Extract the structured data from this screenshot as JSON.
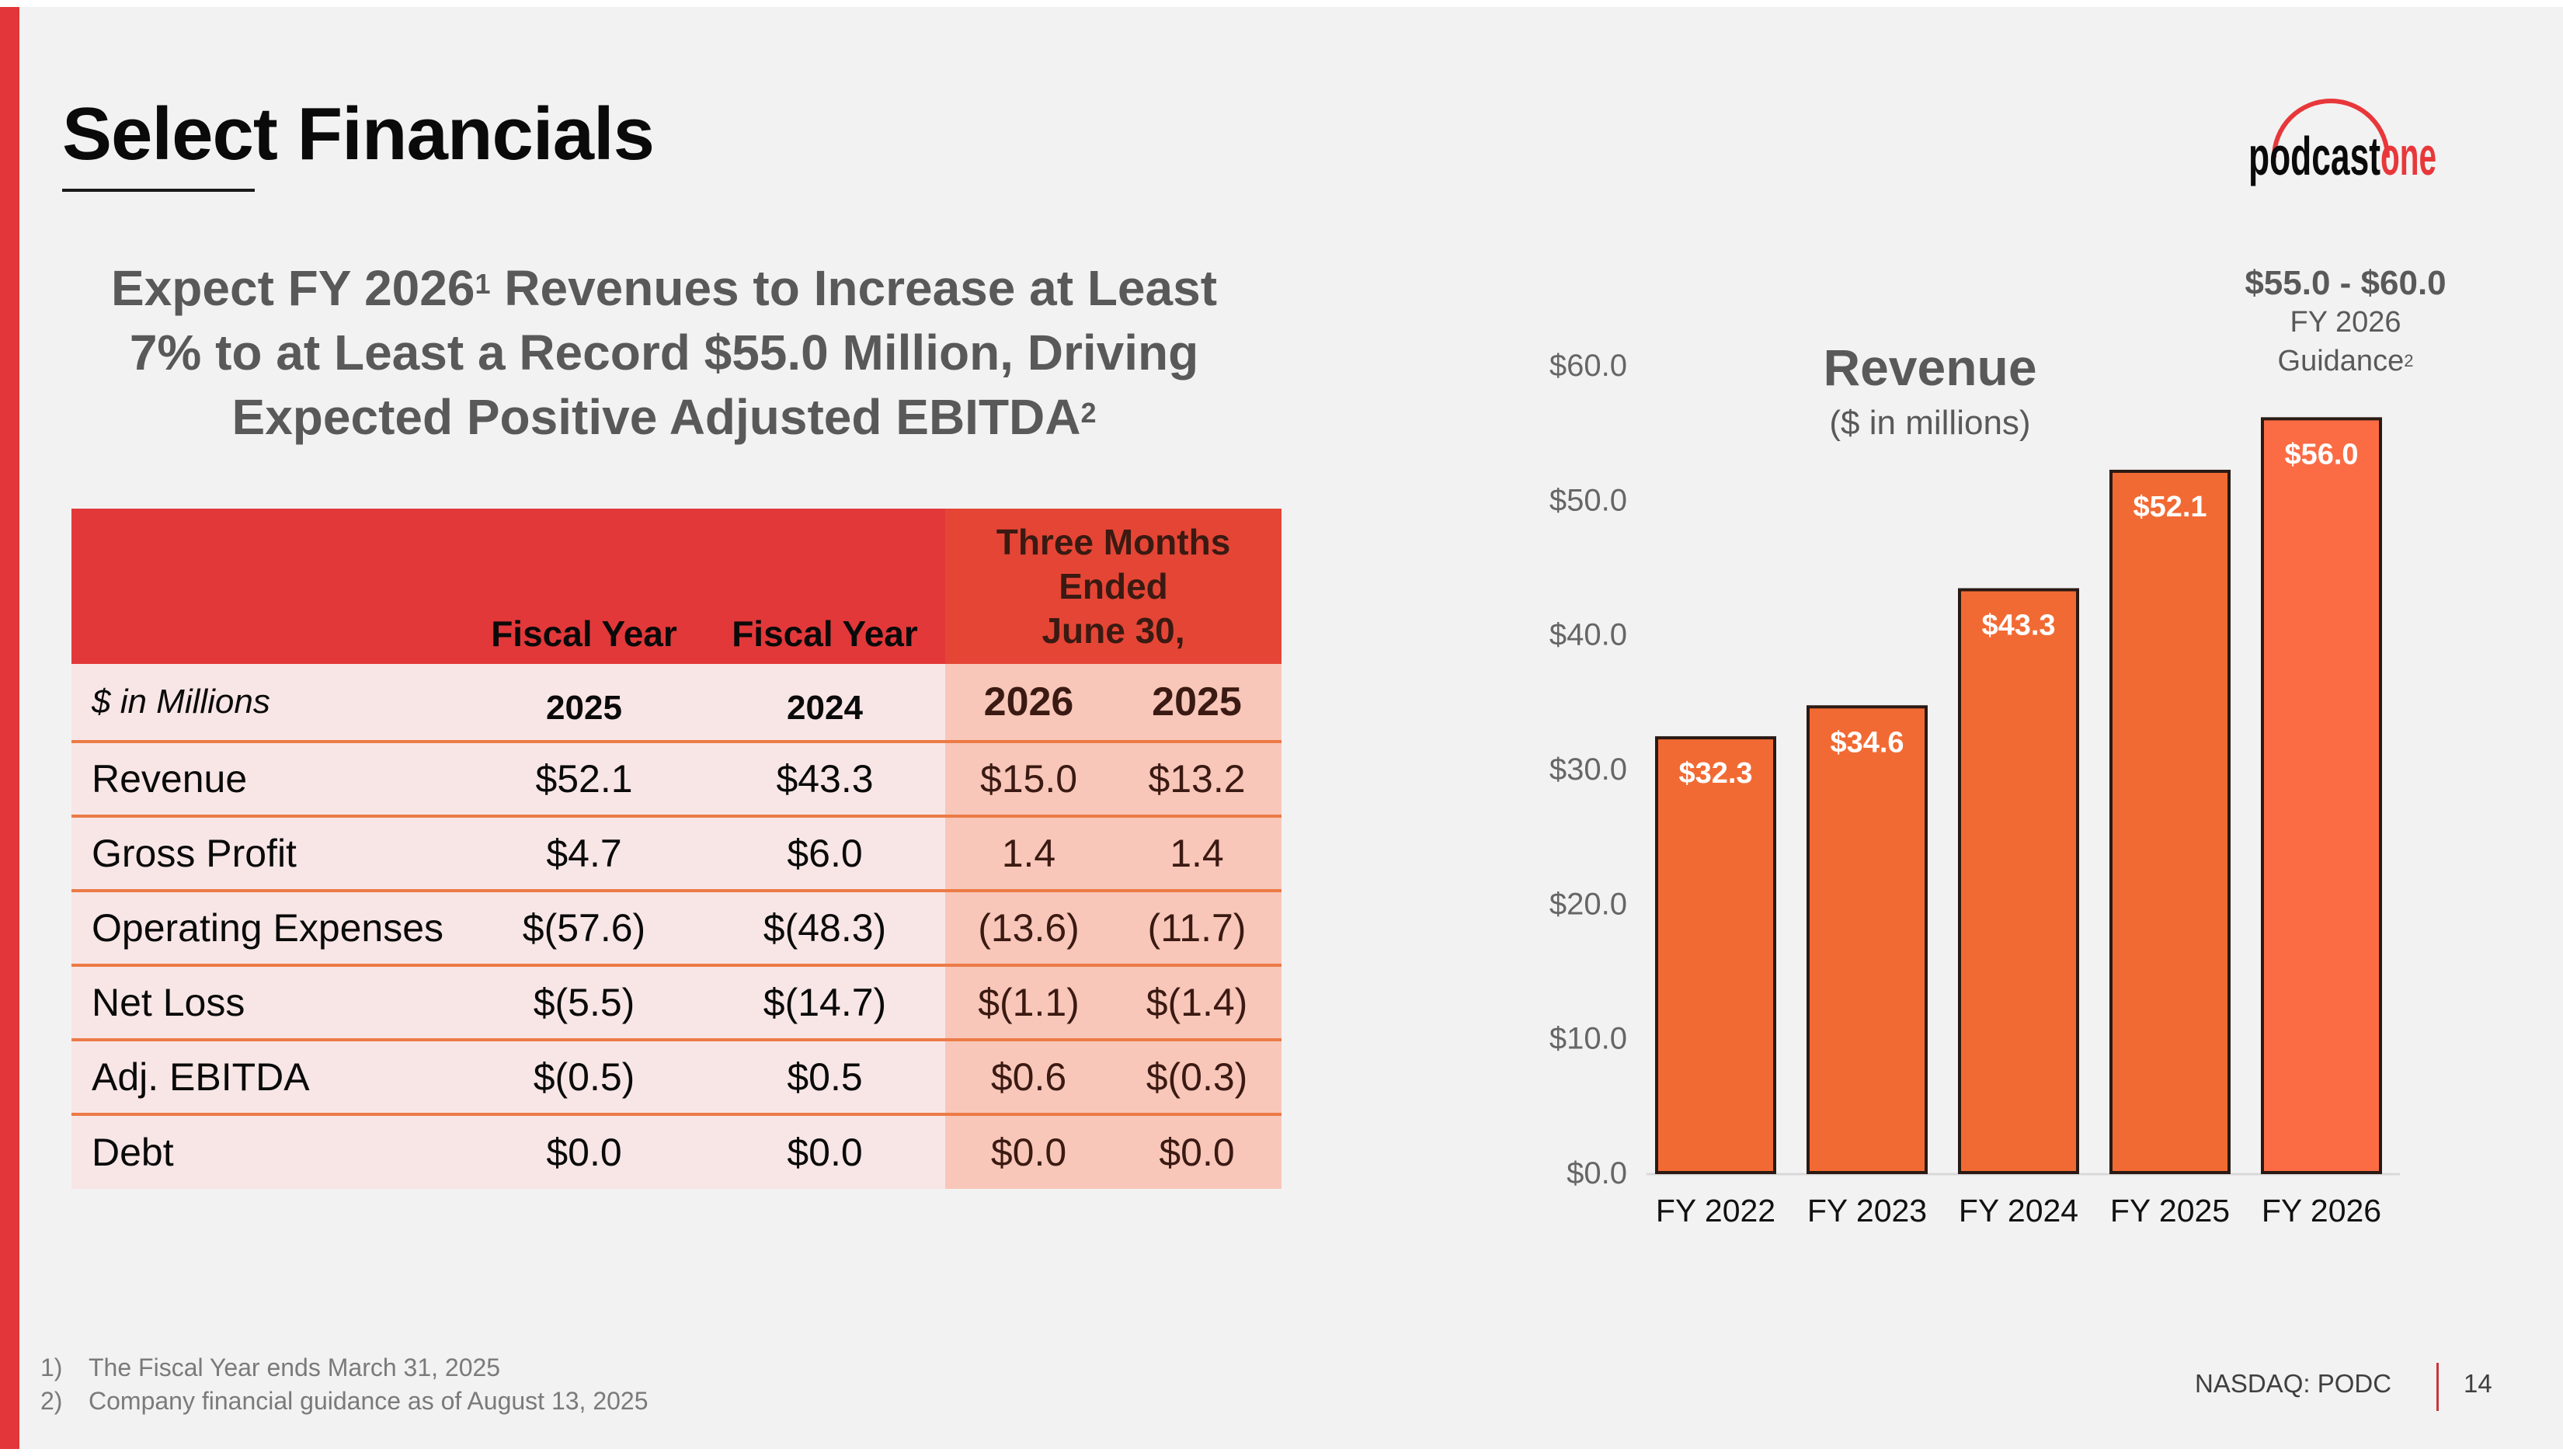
{
  "slide": {
    "title": "Select Financials",
    "headline": {
      "line1_pre": "Expect FY 2026",
      "line1_sup": "1",
      "line1_post": " Revenues to Increase at Least",
      "line2": "7% to at Least a Record $55.0 Million, Driving",
      "line3": "Expected Positive Adjusted EBITDA",
      "line3_sup": "2"
    },
    "brand_colors": {
      "accent_red": "#e3363a",
      "bar_orange": "#f26a33",
      "row_tint": "#f8e6e6",
      "quarter_tint": "#f8c7b9",
      "rule_orange": "#ec7a46"
    }
  },
  "logo": {
    "text_black": "podcast",
    "text_red": "one",
    "name": "podcastone-logo"
  },
  "table": {
    "header": {
      "fy_label_1": "Fiscal Year",
      "fy_label_2": "Fiscal Year",
      "quarter_line1": "Three Months",
      "quarter_line2": "Ended",
      "quarter_line3": "June 30,"
    },
    "subheader": {
      "units": "$ in Millions",
      "fy1": "2025",
      "fy2": "2024",
      "q1": "2026",
      "q2": "2025"
    },
    "rows": [
      {
        "label": "Revenue",
        "fy2025": "$52.1",
        "fy2024": "$43.3",
        "q2026": "$15.0",
        "q2025": "$13.2"
      },
      {
        "label": "Gross Profit",
        "fy2025": "$4.7",
        "fy2024": "$6.0",
        "q2026": "1.4",
        "q2025": "1.4"
      },
      {
        "label": "Operating Expenses",
        "fy2025": "$(57.6)",
        "fy2024": "$(48.3)",
        "q2026": "(13.6)",
        "q2025": "(11.7)"
      },
      {
        "label": "Net Loss",
        "fy2025": "$(5.5)",
        "fy2024": "$(14.7)",
        "q2026": "$(1.1)",
        "q2025": "$(1.4)"
      },
      {
        "label": "Adj. EBITDA",
        "fy2025": "$(0.5)",
        "fy2024": "$0.5",
        "q2026": "$0.6",
        "q2025": "$(0.3)"
      },
      {
        "label": "Debt",
        "fy2025": "$0.0",
        "fy2024": "$0.0",
        "q2026": "$0.0",
        "q2025": "$0.0"
      }
    ]
  },
  "guidance": {
    "range": "$55.0 - $60.0",
    "line1": "FY 2026",
    "line2": "Guidance",
    "line2_sup": "2"
  },
  "chart_data": {
    "type": "bar",
    "title": "Revenue",
    "subtitle": "($ in millions)",
    "xlabel": "",
    "ylabel": "",
    "categories": [
      "FY 2022",
      "FY 2023",
      "FY 2024",
      "FY 2025",
      "FY 2026"
    ],
    "values": [
      32.3,
      34.6,
      43.3,
      52.1,
      56.0
    ],
    "data_labels": [
      "$32.3",
      "$34.6",
      "$43.3",
      "$52.1",
      "$56.0"
    ],
    "ylim": [
      0,
      60
    ],
    "yticks": [
      0,
      10,
      20,
      30,
      40,
      50,
      60
    ],
    "ytick_labels": [
      "$0.0",
      "$10.0",
      "$20.0",
      "$30.0",
      "$40.0",
      "$50.0",
      "$60.0"
    ],
    "grid": false,
    "legend": "none",
    "bar_color": "#f26a33",
    "bar_color_last": "#fb6c45"
  },
  "footer": {
    "footnotes": [
      {
        "num": "1)",
        "text": "The Fiscal Year ends March 31, 2025"
      },
      {
        "num": "2)",
        "text": "Company financial guidance as of August 13, 2025"
      }
    ],
    "ticker": "NASDAQ: PODC",
    "page": "14"
  }
}
